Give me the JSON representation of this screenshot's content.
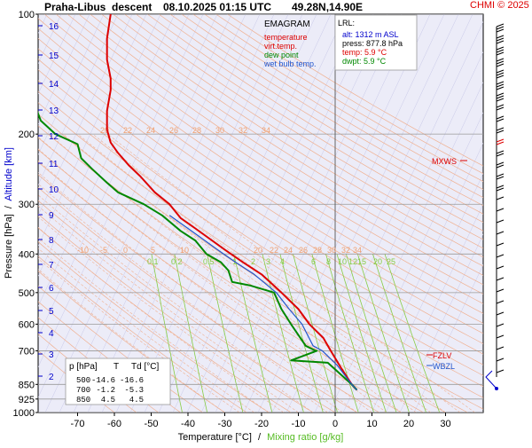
{
  "header": {
    "station": "Praha-Libus",
    "mode": "descent",
    "datetime": "08.10.2025 01:15 UTC",
    "coords": "49.28N,14.90E",
    "copyright": "CHMI © 2025"
  },
  "legend": {
    "title": "EMAGRAM",
    "items": [
      {
        "label": "temperature",
        "color": "#dd0000"
      },
      {
        "label": "virt.temp.",
        "color": "#dd0000"
      },
      {
        "label": "dew point",
        "color": "#008800"
      },
      {
        "label": "wet bulb temp.",
        "color": "#2255cc"
      }
    ]
  },
  "lrl": {
    "title": "LRL:",
    "alt": "alt: 1312 m ASL",
    "press": "press: 877.8 hPa",
    "temp": "temp: 5.9 °C",
    "dwpt": "dwpt: 5.9 °C"
  },
  "table": {
    "headers": [
      "p [hPa]",
      "T",
      "Td [°C]"
    ],
    "rows": [
      [
        "500",
        "-14.6",
        "-16.6"
      ],
      [
        "700",
        "-1.2",
        "-5.3"
      ],
      [
        "850",
        "4.5",
        "4.5"
      ]
    ]
  },
  "markers": {
    "mxws": "MXWS",
    "fzlv": "FZLV",
    "wbzl": "WBZL"
  },
  "axes": {
    "ylabel_main": "Pressure [hPa]",
    "ylabel_sep": "/",
    "ylabel_alt": "Altitude [km]",
    "xlabel_main": "Temperature [°C]",
    "xlabel_sep": "/",
    "xlabel_mix": "Mixing ratio [g/kg]"
  },
  "colors": {
    "temperature": "#dd0000",
    "dewpoint": "#008800",
    "wetbulb": "#2255cc",
    "altitude": "#0000cc",
    "dry_adiabat": "#f0b090",
    "moist_adiabat": "#f0b090",
    "mixing_ratio": "#88cc44",
    "grid": "#999999",
    "plot_bg": "#ececf8"
  },
  "chart_data": {
    "type": "line",
    "xlim": [
      -80,
      40
    ],
    "ylim_hpa": [
      1000,
      100
    ],
    "x_ticks": [
      -70,
      -60,
      -50,
      -40,
      -30,
      -20,
      -10,
      0,
      10,
      20,
      30
    ],
    "p_ticks": [
      100,
      200,
      300,
      400,
      500,
      600,
      700,
      850,
      925,
      1000
    ],
    "km_ticks": [
      16,
      15,
      14,
      13,
      12,
      11,
      10,
      9,
      8,
      7,
      6,
      5,
      4,
      3,
      2
    ],
    "dry_adiabat_labels": [
      20,
      22,
      24,
      26,
      28,
      30,
      32,
      34
    ],
    "moist_adiabat_labels": [
      -10,
      -5,
      0,
      5,
      10,
      20,
      22,
      24,
      26,
      28,
      30,
      32,
      34
    ],
    "mixing_ratio_labels": [
      0.1,
      0.2,
      0.5,
      1,
      2,
      3,
      4,
      6,
      8,
      10,
      12,
      15,
      20,
      25
    ],
    "series": [
      {
        "name": "temperature",
        "points": [
          [
            5.9,
            877.8
          ],
          [
            4.5,
            850
          ],
          [
            1.5,
            770
          ],
          [
            -1.2,
            700
          ],
          [
            -3.2,
            650
          ],
          [
            -7,
            600
          ],
          [
            -10,
            550
          ],
          [
            -14.6,
            500
          ],
          [
            -20,
            450
          ],
          [
            -25,
            420
          ],
          [
            -30,
            390
          ],
          [
            -38,
            345
          ],
          [
            -42,
            325
          ],
          [
            -45,
            300
          ],
          [
            -49,
            280
          ],
          [
            -53,
            255
          ],
          [
            -56,
            240
          ],
          [
            -59,
            223
          ],
          [
            -61,
            210
          ],
          [
            -62,
            195
          ],
          [
            -62,
            175
          ],
          [
            -61,
            155
          ],
          [
            -61,
            145
          ],
          [
            -62,
            130
          ],
          [
            -62,
            115
          ],
          [
            -61,
            100
          ]
        ]
      },
      {
        "name": "dew point",
        "points": [
          [
            5.9,
            877.8
          ],
          [
            4.5,
            850
          ],
          [
            -2,
            750
          ],
          [
            -12,
            740
          ],
          [
            -5,
            700
          ],
          [
            -5.3,
            700
          ],
          [
            -8,
            680
          ],
          [
            -12,
            600
          ],
          [
            -14.6,
            550
          ],
          [
            -16.6,
            500
          ],
          [
            -23,
            480
          ],
          [
            -28,
            470
          ],
          [
            -29,
            440
          ],
          [
            -31,
            420
          ],
          [
            -35,
            400
          ],
          [
            -38,
            370
          ],
          [
            -42,
            350
          ],
          [
            -47,
            320
          ],
          [
            -52,
            300
          ],
          [
            -59,
            280
          ],
          [
            -62,
            265
          ],
          [
            -66,
            245
          ],
          [
            -69,
            230
          ],
          [
            -70,
            212
          ],
          [
            -76,
            200
          ],
          [
            -80,
            185
          ],
          [
            -81,
            175
          ]
        ]
      },
      {
        "name": "wet bulb temp.",
        "points": [
          [
            5.9,
            877.8
          ],
          [
            4.5,
            850
          ],
          [
            0.5,
            760
          ],
          [
            -3.5,
            700
          ],
          [
            -6,
            680
          ],
          [
            -9,
            600
          ],
          [
            -12.5,
            550
          ],
          [
            -16,
            500
          ],
          [
            -22,
            450
          ],
          [
            -27,
            420
          ],
          [
            -32,
            390
          ],
          [
            -40,
            345
          ],
          [
            -45,
            320
          ]
        ]
      }
    ]
  }
}
